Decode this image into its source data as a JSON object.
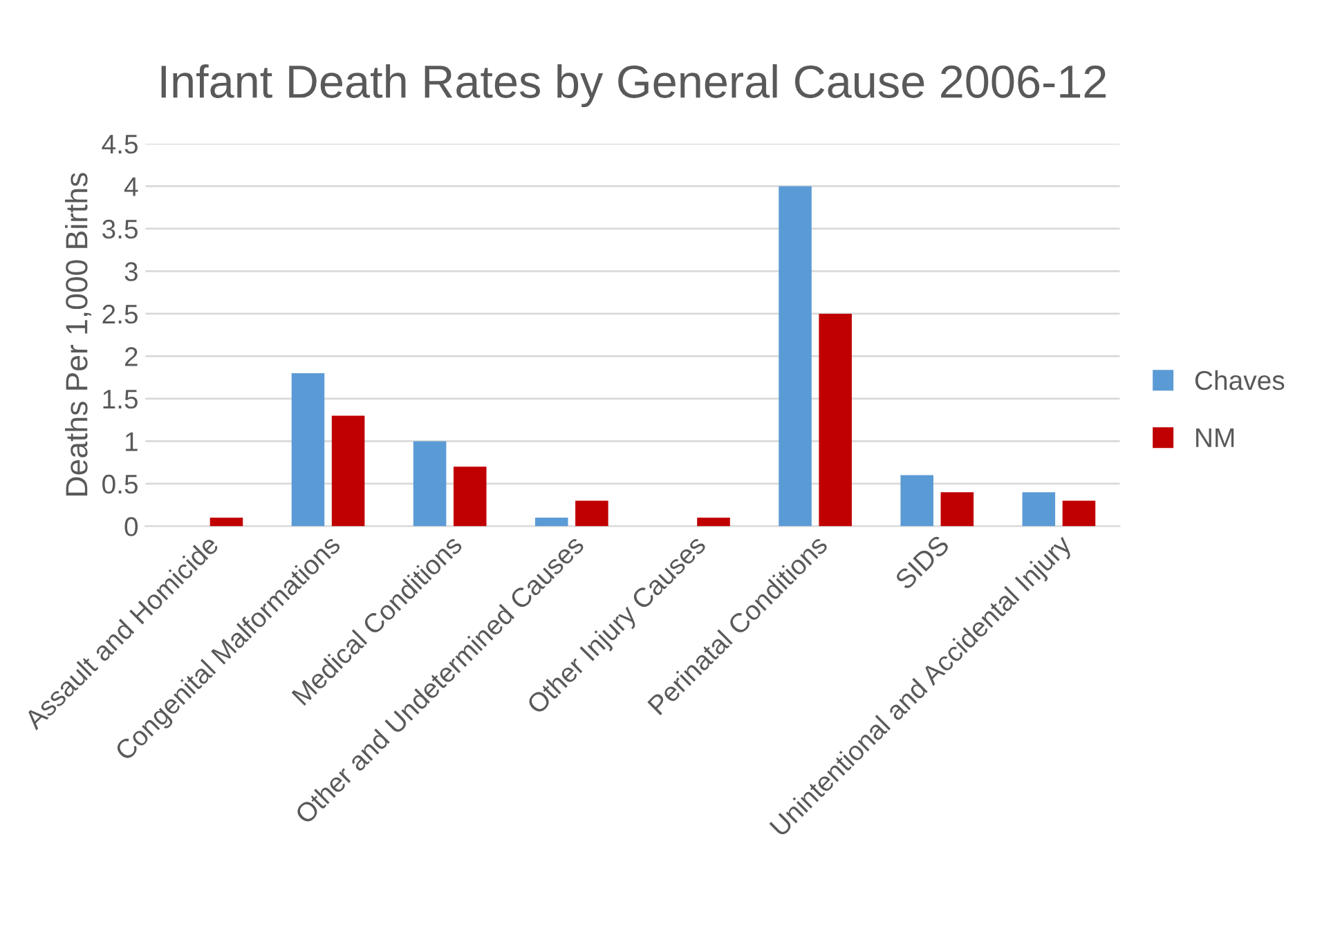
{
  "chart_data": {
    "type": "bar",
    "title": "Infant Death Rates by General Cause 2006-12",
    "ylabel": "Deaths Per 1,000 Births",
    "categories": [
      "Assault and Homicide",
      "Congenital Malformations",
      "Medical Conditions",
      "Other and Undetermined Causes",
      "Other Injury Causes",
      "Perinatal Conditions",
      "SIDS",
      "Unintentional and Accidental Injury"
    ],
    "series": [
      {
        "name": "Chaves",
        "color": "#5b9bd5",
        "values": [
          0,
          1.8,
          1.0,
          0.1,
          0,
          4.0,
          0.6,
          0.4
        ]
      },
      {
        "name": "NM",
        "color": "#c00000",
        "values": [
          0.1,
          1.3,
          0.7,
          0.3,
          0.1,
          2.5,
          0.4,
          0.3
        ]
      }
    ],
    "ylim": [
      0,
      4.5
    ],
    "yticks": [
      0,
      0.5,
      1,
      1.5,
      2,
      2.5,
      3,
      3.5,
      4,
      4.5
    ],
    "grid": "y",
    "legend": "right"
  }
}
